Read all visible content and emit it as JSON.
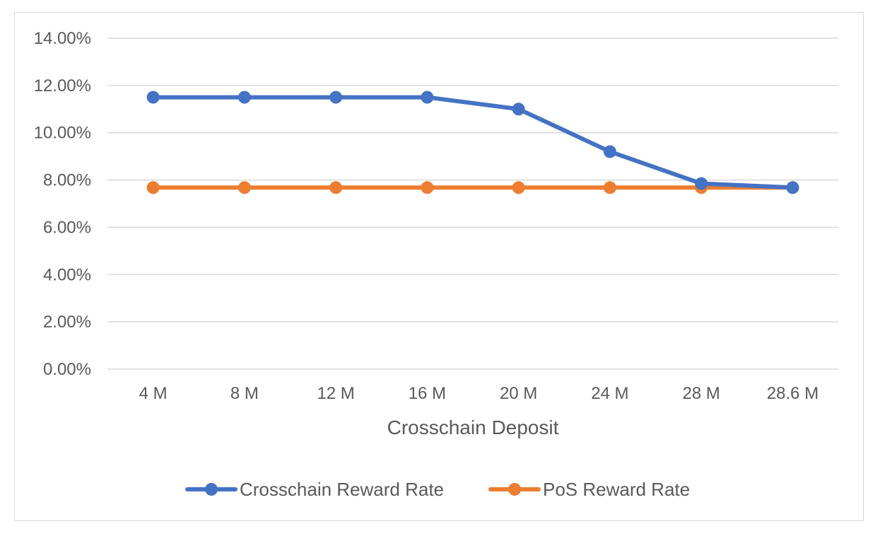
{
  "chart_data": {
    "type": "line",
    "title": "",
    "xlabel": "Crosschain Deposit",
    "ylabel": "",
    "categories": [
      "4 M",
      "8 M",
      "12 M",
      "16 M",
      "20 M",
      "24 M",
      "28 M",
      "28.6 M"
    ],
    "ylim": [
      0,
      14
    ],
    "yticks": [
      0,
      2,
      4,
      6,
      8,
      10,
      12,
      14
    ],
    "ytick_labels": [
      "0.00%",
      "2.00%",
      "4.00%",
      "6.00%",
      "8.00%",
      "10.00%",
      "12.00%",
      "14.00%"
    ],
    "grid": true,
    "legend_position": "bottom",
    "series": [
      {
        "name": "Crosschain Reward Rate",
        "color": "#4472c4",
        "values": [
          11.5,
          11.5,
          11.5,
          11.5,
          11.0,
          9.2,
          7.85,
          7.68
        ]
      },
      {
        "name": "PoS Reward Rate",
        "color": "#ed7d31",
        "values": [
          7.68,
          7.68,
          7.68,
          7.68,
          7.68,
          7.68,
          7.68,
          7.68
        ]
      }
    ]
  }
}
